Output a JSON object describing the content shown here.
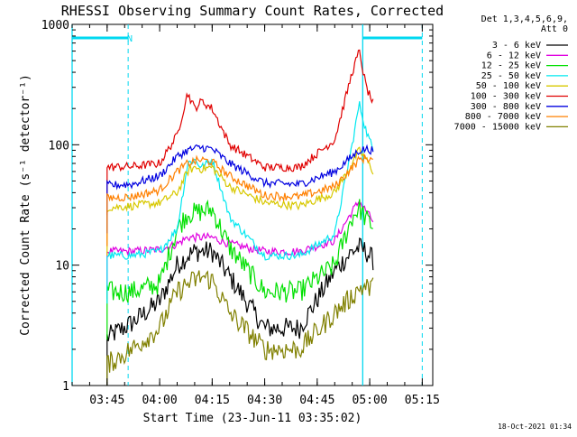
{
  "chart_data": {
    "type": "line",
    "title": "RHESSI Observing Summary Count Rates, Corrected",
    "xlabel": "Start Time (23-Jun-11 03:35:02)",
    "ylabel": "Corrected Count Rate (s⁻¹ detector⁻¹)",
    "yscale": "log",
    "ylim": [
      1,
      1000
    ],
    "xlim_minutes": [
      [
        3,
        35
      ],
      [
        5,
        18
      ]
    ],
    "x_tick_labels": [
      "03:45",
      "04:00",
      "04:15",
      "04:30",
      "04:45",
      "05:00",
      "05:15"
    ],
    "y_tick_labels": [
      "1",
      "10",
      "100",
      "1000"
    ],
    "legend_header": [
      "Det 1,3,4,5,6,9,",
      "Att 0"
    ],
    "legend_position": "right",
    "grid": false,
    "annotation_N": "N",
    "footer_date": "18-Oct-2021 01:34",
    "x": [
      "03:45",
      "03:52",
      "04:00",
      "04:05",
      "04:08",
      "04:10",
      "04:12",
      "04:15",
      "04:20",
      "04:30",
      "04:40",
      "04:50",
      "04:55",
      "04:57",
      "04:59",
      "05:01"
    ],
    "series": [
      {
        "name": "3 - 6 keV",
        "color": "#000000",
        "values": [
          2.5,
          3.3,
          5,
          10,
          12,
          13,
          13,
          13,
          8,
          3,
          3,
          9,
          13,
          14,
          13,
          11
        ]
      },
      {
        "name": "6 - 12 keV",
        "color": "#e000e0",
        "values": [
          13,
          13,
          13.5,
          15,
          17,
          17,
          17,
          17,
          15,
          13,
          13,
          16,
          28,
          34,
          28,
          23
        ]
      },
      {
        "name": "12 - 25 keV",
        "color": "#00e000",
        "values": [
          6,
          6,
          7,
          20,
          27,
          27,
          28,
          29,
          14,
          6,
          6,
          10,
          25,
          30,
          24,
          21
        ]
      },
      {
        "name": "25 - 50 keV",
        "color": "#00e8f0",
        "values": [
          12,
          12,
          13,
          20,
          70,
          75,
          65,
          75,
          25,
          12,
          12,
          18,
          100,
          220,
          130,
          90
        ]
      },
      {
        "name": "50 - 100 keV",
        "color": "#d8c800",
        "values": [
          30,
          31,
          33,
          40,
          60,
          65,
          63,
          65,
          45,
          33,
          31,
          40,
          70,
          90,
          75,
          60
        ]
      },
      {
        "name": "100 - 300 keV",
        "color": "#e00000",
        "values": [
          65,
          66,
          70,
          120,
          270,
          200,
          230,
          200,
          100,
          65,
          65,
          110,
          400,
          600,
          300,
          220
        ]
      },
      {
        "name": "300 - 800 keV",
        "color": "#0000e0",
        "values": [
          46,
          47,
          55,
          80,
          90,
          93,
          95,
          92,
          70,
          48,
          47,
          60,
          80,
          90,
          92,
          90
        ]
      },
      {
        "name": "800 - 7000 keV",
        "color": "#ff8000",
        "values": [
          36,
          37,
          42,
          60,
          70,
          73,
          75,
          72,
          55,
          38,
          37,
          45,
          65,
          75,
          78,
          75
        ]
      },
      {
        "name": "7000 - 15000 keV",
        "color": "#808000",
        "values": [
          1.5,
          2,
          3,
          6,
          7,
          7.5,
          8,
          7.5,
          4,
          2,
          2,
          4,
          5.5,
          6.5,
          6.5,
          6.5
        ]
      }
    ],
    "attenuator_bars": [
      [
        [
          3,
          35
        ],
        [
          3,
          51
        ]
      ],
      [
        [
          4,
          58
        ],
        [
          5,
          15
        ]
      ]
    ],
    "markers_minutes": {
      "cyan_solid": [
        [
          3,
          35
        ],
        [
          4,
          58
        ]
      ],
      "cyan_dashed": [
        [
          3,
          51
        ],
        [
          5,
          15
        ]
      ]
    }
  }
}
